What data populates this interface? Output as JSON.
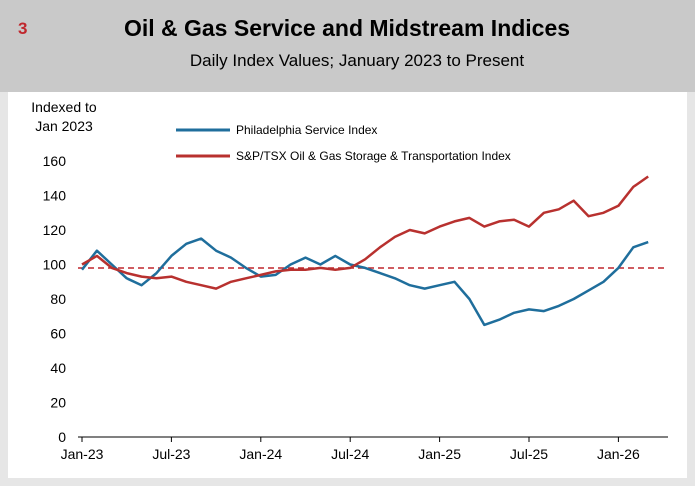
{
  "chart_data": {
    "type": "line",
    "figure_number": "3",
    "title": "Oil & Gas Service and Midstream Indices",
    "subtitle": "Daily Index Values; January 2023 to Present",
    "y_label": [
      "Indexed to",
      "Jan 2023"
    ],
    "x": [
      "Jan-23",
      "Feb-23",
      "Mar-23",
      "Apr-23",
      "May-23",
      "Jun-23",
      "Jul-23",
      "Aug-23",
      "Sep-23",
      "Oct-23",
      "Nov-23",
      "Dec-23",
      "Jan-24",
      "Feb-24",
      "Mar-24",
      "Apr-24",
      "May-24",
      "Jun-24",
      "Jul-24",
      "Aug-24",
      "Sep-24",
      "Oct-24",
      "Nov-24",
      "Dec-24",
      "Jan-25",
      "Feb-25",
      "Mar-25",
      "Apr-25",
      "May-25",
      "Jun-25",
      "Jul-25",
      "Aug-25",
      "Sep-25",
      "Oct-25",
      "Nov-25",
      "Dec-25",
      "Jan-26",
      "Feb-26",
      "Mar-26"
    ],
    "xticks": [
      "Jan-23",
      "Jul-23",
      "Jan-24",
      "Jul-24",
      "Jan-25",
      "Jul-25",
      "Jan-26"
    ],
    "series": [
      {
        "name": "Philadelphia Service Index",
        "color": "#1f6e9c",
        "values": [
          97,
          108,
          100,
          92,
          88,
          95,
          105,
          112,
          115,
          108,
          104,
          98,
          93,
          94,
          100,
          104,
          100,
          105,
          100,
          98,
          95,
          92,
          88,
          86,
          88,
          90,
          80,
          65,
          68,
          72,
          74,
          73,
          76,
          80,
          85,
          90,
          98,
          110,
          113
        ]
      },
      {
        "name": "S&P/TSX Oil & Gas Storage & Transportation Index",
        "color": "#b8312f",
        "values": [
          100,
          105,
          98,
          95,
          93,
          92,
          93,
          90,
          88,
          86,
          90,
          92,
          94,
          96,
          97,
          97,
          98,
          97,
          98,
          103,
          110,
          116,
          120,
          118,
          122,
          125,
          127,
          122,
          125,
          126,
          122,
          130,
          132,
          137,
          128,
          130,
          134,
          145,
          151
        ]
      }
    ],
    "reference_line": 98,
    "reference_color": "#c0272d",
    "ylim": [
      0,
      160
    ],
    "yticks": [
      0,
      20,
      40,
      60,
      80,
      100,
      120,
      140,
      160
    ],
    "grid": false
  }
}
